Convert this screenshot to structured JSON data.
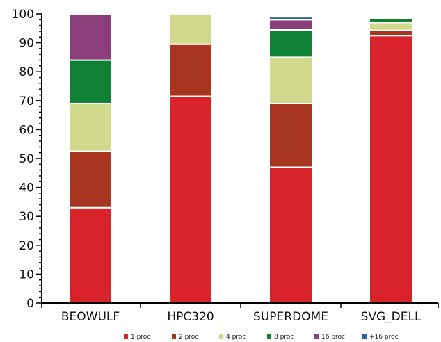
{
  "chart_data": {
    "type": "bar",
    "stacked": true,
    "categories": [
      "BEOWULF",
      "HPC320",
      "SUPERDOME",
      "SVG_DELL"
    ],
    "series": [
      {
        "name": "1 proc",
        "color": "#d9232b",
        "values": [
          33,
          71.5,
          47,
          92.5
        ]
      },
      {
        "name": "2 proc",
        "color": "#a8351f",
        "values": [
          19.5,
          18,
          22,
          1.8
        ]
      },
      {
        "name": "4 proc",
        "color": "#d0d98c",
        "values": [
          16.5,
          10.5,
          16,
          2.7
        ]
      },
      {
        "name": "8 proc",
        "color": "#0f8236",
        "values": [
          15,
          0,
          9.5,
          1.5
        ]
      },
      {
        "name": "16 proc",
        "color": "#8b3f7a",
        "values": [
          16,
          0,
          3.5,
          0
        ]
      },
      {
        "name": "+16 proc",
        "color": "#1f63a8",
        "values": [
          0,
          0,
          1,
          0
        ]
      }
    ],
    "ylim": [
      0,
      100
    ],
    "yticks": [
      "0",
      "10",
      "20",
      "30",
      "40",
      "50",
      "60",
      "70",
      "80",
      "90",
      "100"
    ],
    "grid": false,
    "legend_position": "bottom"
  }
}
